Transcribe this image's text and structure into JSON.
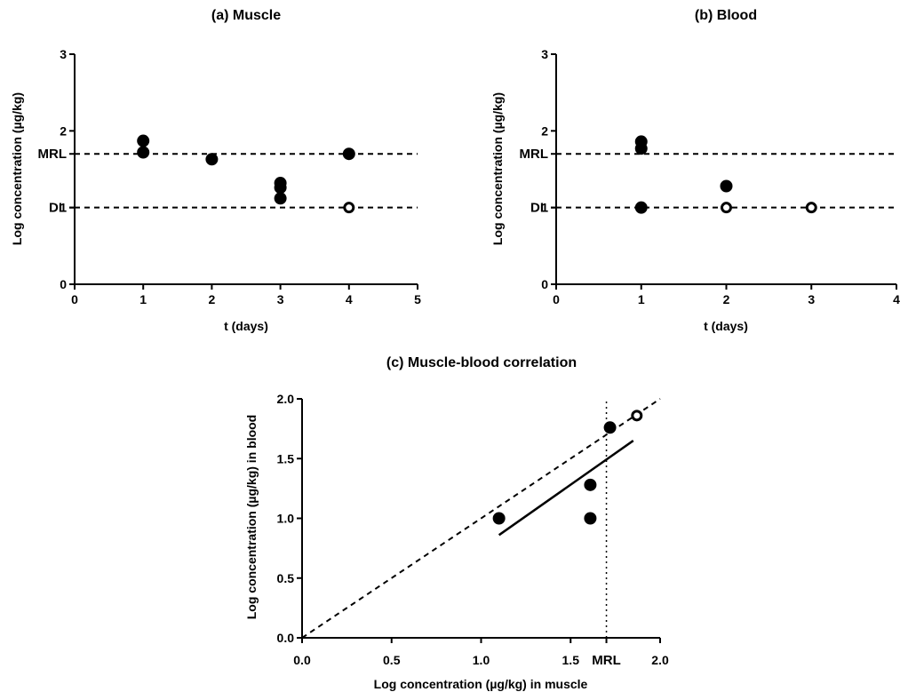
{
  "chart_data": [
    {
      "id": "muscle",
      "type": "scatter",
      "title": "(a) Muscle",
      "xlabel": "t (days)",
      "ylabel": "Log concentration (µg/kg)",
      "xlim": [
        0,
        5
      ],
      "ylim": [
        0,
        3
      ],
      "x_ticks": [
        "0",
        "1",
        "2",
        "3",
        "4",
        "5"
      ],
      "y_ticks": [
        "0",
        "1",
        "2",
        "3"
      ],
      "reference_lines": [
        {
          "label": "MRL",
          "y": 1.7,
          "style": "dashed"
        },
        {
          "label": "DL",
          "y": 1.0,
          "style": "dashed"
        }
      ],
      "points": [
        {
          "x": 1,
          "y": 1.87,
          "filled": true
        },
        {
          "x": 1,
          "y": 1.72,
          "filled": true
        },
        {
          "x": 2,
          "y": 1.63,
          "filled": true
        },
        {
          "x": 3,
          "y": 1.32,
          "filled": true
        },
        {
          "x": 3,
          "y": 1.26,
          "filled": true
        },
        {
          "x": 3,
          "y": 1.12,
          "filled": true
        },
        {
          "x": 4,
          "y": 1.7,
          "filled": true
        },
        {
          "x": 4,
          "y": 1.0,
          "filled": false
        }
      ]
    },
    {
      "id": "blood",
      "type": "scatter",
      "title": "(b) Blood",
      "xlabel": "t (days)",
      "ylabel": "Log concentration (µg/kg)",
      "xlim": [
        0,
        4
      ],
      "ylim": [
        0,
        3
      ],
      "x_ticks": [
        "0",
        "1",
        "2",
        "3",
        "4"
      ],
      "y_ticks": [
        "0",
        "1",
        "2",
        "3"
      ],
      "reference_lines": [
        {
          "label": "MRL",
          "y": 1.7,
          "style": "dashed"
        },
        {
          "label": "DL",
          "y": 1.0,
          "style": "dashed"
        }
      ],
      "points": [
        {
          "x": 1,
          "y": 1.86,
          "filled": true
        },
        {
          "x": 1,
          "y": 1.77,
          "filled": true
        },
        {
          "x": 1,
          "y": 1.0,
          "filled": true
        },
        {
          "x": 2,
          "y": 1.28,
          "filled": true
        },
        {
          "x": 2,
          "y": 1.0,
          "filled": false
        },
        {
          "x": 3,
          "y": 1.0,
          "filled": false
        }
      ]
    },
    {
      "id": "correlation",
      "type": "scatter",
      "title": "(c) Muscle-blood correlation",
      "xlabel": "Log concentration (µg/kg) in muscle",
      "ylabel": "Log concentration (µg/kg) in blood",
      "xlim": [
        0,
        2
      ],
      "ylim": [
        0,
        2
      ],
      "x_ticks": [
        "0.0",
        "0.5",
        "1.0",
        "1.5",
        "2.0"
      ],
      "x_tick_values": [
        0,
        0.5,
        1.0,
        1.5,
        2.0
      ],
      "extra_x_tick": {
        "label": "MRL",
        "x": 1.7
      },
      "y_ticks": [
        "0.0",
        "0.5",
        "1.0",
        "1.5",
        "2.0"
      ],
      "y_tick_values": [
        0,
        0.5,
        1.0,
        1.5,
        2.0
      ],
      "identity_line": {
        "from": [
          0,
          0
        ],
        "to": [
          2,
          2
        ],
        "style": "dashed"
      },
      "vertical_line": {
        "x": 1.7,
        "style": "dotted"
      },
      "regression_line": {
        "from": [
          1.1,
          0.86
        ],
        "to": [
          1.85,
          1.65
        ],
        "style": "solid"
      },
      "points": [
        {
          "x": 1.1,
          "y": 1.0,
          "filled": true
        },
        {
          "x": 1.61,
          "y": 1.28,
          "filled": true
        },
        {
          "x": 1.61,
          "y": 1.0,
          "filled": true
        },
        {
          "x": 1.72,
          "y": 1.76,
          "filled": true
        },
        {
          "x": 1.87,
          "y": 1.86,
          "filled": false
        }
      ]
    }
  ]
}
